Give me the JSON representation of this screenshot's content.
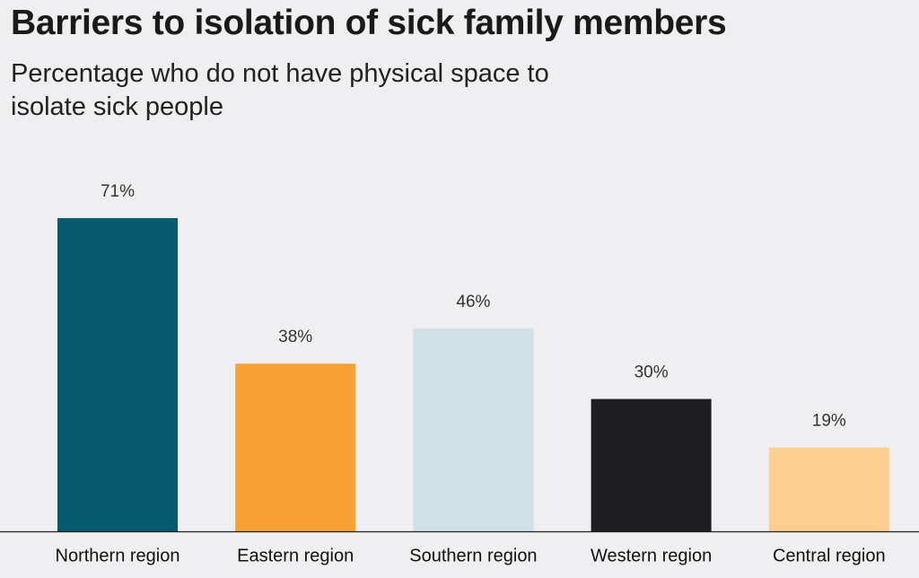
{
  "chart_data": {
    "type": "bar",
    "title": "Barriers to isolation of sick family members",
    "subtitle": "Percentage who do not have physical space to isolate sick people",
    "categories": [
      "Northern region",
      "Eastern region",
      "Southern region",
      "Western region",
      "Central region"
    ],
    "values": [
      71,
      38,
      46,
      30,
      19
    ],
    "value_labels": [
      "71%",
      "38%",
      "46%",
      "30%",
      "19%"
    ],
    "colors": [
      "#055a6e",
      "#f7a134",
      "#cfe0e6",
      "#1e1d22",
      "#fccf8f"
    ]
  }
}
